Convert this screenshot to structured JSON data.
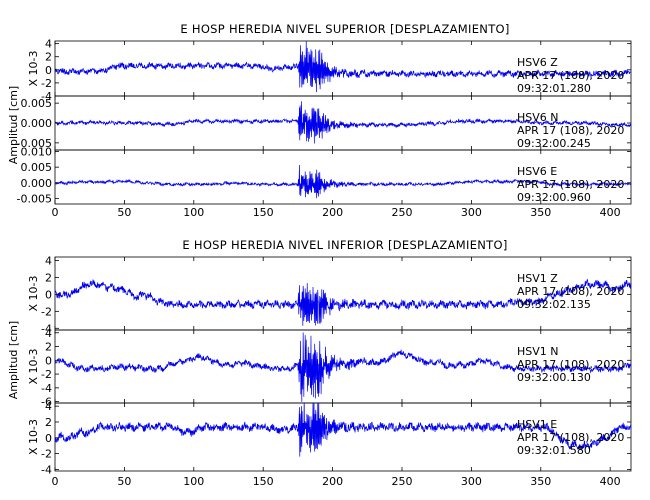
{
  "colors": {
    "trace": "#0000ee",
    "axis": "#000000",
    "background": "#ffffff"
  },
  "chart_data": [
    {
      "type": "line",
      "title": "E HOSP HEREDIA NIVEL SUPERIOR [DESPLAZAMIENTO]",
      "ylabel": "Amplitud [cm]",
      "xlim": [
        0,
        415
      ],
      "x_ticks": [
        "0",
        "50",
        "100",
        "150",
        "200",
        "250",
        "300",
        "350",
        "400"
      ],
      "event_time": 175,
      "panels": [
        {
          "station": "HSV6",
          "component": "Z",
          "date": "APR 17 (108), 2020",
          "time": "09:32:01.280",
          "unit_label": "X 10-3",
          "ylim": [
            -4,
            4.4
          ],
          "y_ticks": [
            "4",
            "2",
            "0",
            "-2",
            "-4"
          ],
          "y_tick_values": [
            4,
            2,
            0,
            -2,
            -4
          ],
          "background_amplitude": 0.7,
          "peak_amplitude": 4.2,
          "slow_drift": 0.4
        },
        {
          "station": "HSV6",
          "component": "N",
          "date": "APR 17 (108), 2020",
          "time": "09:32:00.245",
          "unit_label": "",
          "ylim": [
            -0.0068,
            0.0068
          ],
          "y_ticks": [
            "0.005",
            "0.000",
            "-0.005"
          ],
          "y_tick_values": [
            0.005,
            0.0,
            -0.005
          ],
          "background_amplitude": 0.0007,
          "peak_amplitude": 0.0062,
          "slow_drift": 0.0003
        },
        {
          "station": "HSV6",
          "component": "E",
          "date": "APR 17 (108), 2020",
          "time": "09:32:00.960",
          "unit_label": "",
          "ylim": [
            -0.0068,
            0.0105
          ],
          "y_ticks": [
            "0.010",
            "0.005",
            "0.000",
            "-0.005"
          ],
          "y_tick_values": [
            0.01,
            0.005,
            0.0,
            -0.005
          ],
          "background_amplitude": 0.0007,
          "peak_amplitude": 0.0058,
          "slow_drift": 0.0003
        }
      ]
    },
    {
      "type": "line",
      "title": "E HOSP HEREDIA NIVEL INFERIOR [DESPLAZAMIENTO]",
      "ylabel": "Amplitud [cm]",
      "xlim": [
        0,
        415
      ],
      "x_ticks": [
        "0",
        "50",
        "100",
        "150",
        "200",
        "250",
        "300",
        "350",
        "400"
      ],
      "event_time": 175,
      "panels": [
        {
          "station": "HSV1",
          "component": "Z",
          "date": "APR 17 (108), 2020",
          "time": "09:32:02.135",
          "unit_label": "X 10-3",
          "ylim": [
            -4.2,
            4.4
          ],
          "y_ticks": [
            "4",
            "2",
            "0",
            "-2",
            "-4"
          ],
          "y_tick_values": [
            4,
            2,
            0,
            -2,
            -4
          ],
          "background_amplitude": 0.7,
          "peak_amplitude": 3.0,
          "slow_drift": 0.8
        },
        {
          "station": "HSV1",
          "component": "N",
          "date": "APR 17 (108), 2020",
          "time": "09:32:00.130",
          "unit_label": "X 10-3",
          "ylim": [
            -6.2,
            4.4
          ],
          "y_ticks": [
            "4",
            "2",
            "0",
            "-2",
            "-4",
            "-6"
          ],
          "y_tick_values": [
            4,
            2,
            0,
            -2,
            -4,
            -6
          ],
          "background_amplitude": 0.7,
          "peak_amplitude": 5.8,
          "slow_drift": 0.8
        },
        {
          "station": "HSV1",
          "component": "E",
          "date": "APR 17 (108), 2020",
          "time": "09:32:01.580",
          "unit_label": "X 10-3",
          "ylim": [
            -4.2,
            4.4
          ],
          "y_ticks": [
            "4",
            "2",
            "0",
            "-2",
            "-4"
          ],
          "y_tick_values": [
            4,
            2,
            0,
            -2,
            -4
          ],
          "background_amplitude": 0.8,
          "peak_amplitude": 3.8,
          "slow_drift": 0.9
        }
      ]
    }
  ]
}
